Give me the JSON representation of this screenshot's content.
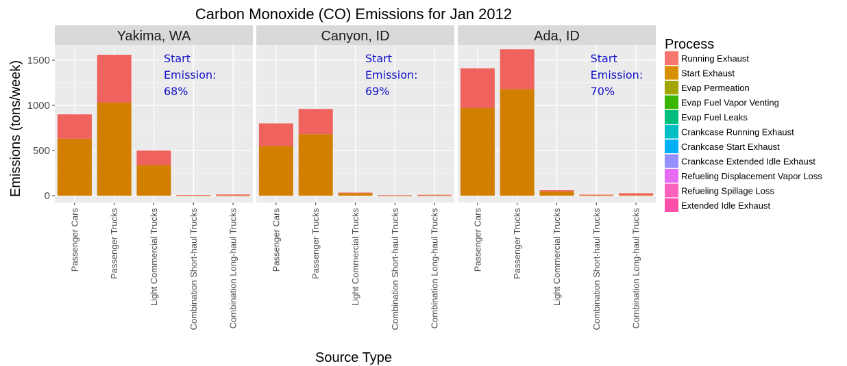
{
  "chart_data": {
    "type": "bar",
    "stacked": true,
    "title": "Carbon Monoxide (CO) Emissions for Jan 2012",
    "xlabel": "Source Type",
    "ylabel": "Emissions (tons/week)",
    "ylim": [
      0,
      1720
    ],
    "yticks": [
      0,
      500,
      1000,
      1500
    ],
    "ytick_labels": [
      "0",
      "500",
      "1000",
      "1500"
    ],
    "grid": true,
    "legend": {
      "title": "Process",
      "position": "right"
    },
    "categories": [
      "Passenger Cars",
      "Passenger Trucks",
      "Light Commercial Trucks",
      "Combination Short-haul Trucks",
      "Combination Long-haul Trucks"
    ],
    "process_legend": [
      {
        "name": "Running Exhaust",
        "color": "#F8766D"
      },
      {
        "name": "Start Exhaust",
        "color": "#D89000"
      },
      {
        "name": "Evap Permeation",
        "color": "#A3A500"
      },
      {
        "name": "Evap Fuel Vapor Venting",
        "color": "#39B600"
      },
      {
        "name": "Evap Fuel Leaks",
        "color": "#00BF7D"
      },
      {
        "name": "Crankcase Running Exhaust",
        "color": "#00BFC4"
      },
      {
        "name": "Crankcase Start Exhaust",
        "color": "#00B0F6"
      },
      {
        "name": "Crankcase Extended Idle Exhaust",
        "color": "#9590FF"
      },
      {
        "name": "Refueling Displacement Vapor Loss",
        "color": "#E76BF3"
      },
      {
        "name": "Refueling Spillage Loss",
        "color": "#FF62BC"
      },
      {
        "name": "Extended Idle Exhaust",
        "color": "#FF4FA8"
      }
    ],
    "facets": [
      {
        "name": "Yakima, WA",
        "annotation": [
          "Start",
          "Emission:",
          "68%"
        ],
        "series": [
          {
            "name": "Start Exhaust",
            "color": "#D27F00",
            "values": [
              630,
              1030,
              340,
              3,
              2
            ]
          },
          {
            "name": "Running Exhaust",
            "color": "#F0625D",
            "values": [
              270,
              530,
              160,
              4,
              11
            ]
          }
        ]
      },
      {
        "name": "Canyon, ID",
        "annotation": [
          "Start",
          "Emission:",
          "69%"
        ],
        "series": [
          {
            "name": "Start Exhaust",
            "color": "#D27F00",
            "values": [
              550,
              680,
              28,
              2,
              2
            ]
          },
          {
            "name": "Running Exhaust",
            "color": "#F0625D",
            "values": [
              250,
              280,
              6,
              3,
              8
            ]
          }
        ]
      },
      {
        "name": "Ada, ID",
        "annotation": [
          "Start",
          "Emission:",
          "70%"
        ],
        "series": [
          {
            "name": "Start Exhaust",
            "color": "#D27F00",
            "values": [
              970,
              1180,
              48,
              3,
              5
            ]
          },
          {
            "name": "Running Exhaust",
            "color": "#F0625D",
            "values": [
              440,
              440,
              12,
              8,
              22
            ]
          }
        ]
      }
    ]
  }
}
